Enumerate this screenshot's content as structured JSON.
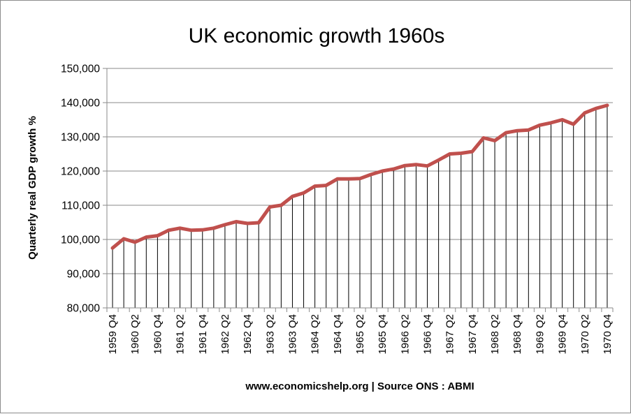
{
  "chart_data": {
    "type": "line",
    "title": "UK economic growth 1960s",
    "ylabel": "Quarterly real GDP growth %",
    "xlabel": "www.economicshelp.org | Source ONS : ABMI",
    "ylim": [
      80000,
      150000
    ],
    "yticks": [
      "80,000",
      "90,000",
      "100,000",
      "110,000",
      "120,000",
      "130,000",
      "140,000",
      "150,000"
    ],
    "ytick_values": [
      80000,
      90000,
      100000,
      110000,
      120000,
      130000,
      140000,
      150000
    ],
    "grid": true,
    "drop_lines": true,
    "x": [
      "1959 Q4",
      "1960 Q1",
      "1960 Q2",
      "1960 Q3",
      "1960 Q4",
      "1961 Q1",
      "1961 Q2",
      "1961 Q3",
      "1961 Q4",
      "1962 Q1",
      "1962 Q2",
      "1962 Q3",
      "1962 Q4",
      "1963 Q1",
      "1963 Q2",
      "1963 Q3",
      "1963 Q4",
      "1964 Q1",
      "1964 Q2",
      "1964 Q3",
      "1964 Q4",
      "1965 Q1",
      "1965 Q2",
      "1965 Q3",
      "1965 Q4",
      "1966 Q1",
      "1966 Q2",
      "1966 Q3",
      "1966 Q4",
      "1967 Q1",
      "1967 Q2",
      "1967 Q3",
      "1967 Q4",
      "1968 Q1",
      "1968 Q2",
      "1968 Q3",
      "1968 Q4",
      "1969 Q1",
      "1969 Q2",
      "1969 Q3",
      "1969 Q4",
      "1970 Q1",
      "1970 Q2",
      "1970 Q3",
      "1970 Q4"
    ],
    "x_labels_shown": [
      "1959 Q4",
      "1960 Q2",
      "1960 Q4",
      "1961 Q2",
      "1961 Q4",
      "1962 Q2",
      "1962 Q4",
      "1963 Q2",
      "1963 Q4",
      "1964 Q2",
      "1964 Q4",
      "1965 Q2",
      "1965 Q4",
      "1966 Q2",
      "1966 Q4",
      "1967 Q2",
      "1967 Q4",
      "1968 Q2",
      "1968 Q4",
      "1969 Q2",
      "1969 Q4",
      "1970 Q2",
      "1970 Q4"
    ],
    "series": [
      {
        "values": [
          97500,
          100200,
          99200,
          100700,
          101100,
          102700,
          103300,
          102700,
          102800,
          103300,
          104300,
          105200,
          104700,
          104900,
          109500,
          110000,
          112600,
          113600,
          115600,
          115800,
          117700,
          117700,
          117800,
          119000,
          120000,
          120600,
          121600,
          121900,
          121500,
          123200,
          125000,
          125200,
          125700,
          129700,
          128900,
          131200,
          131800,
          132000,
          133400,
          134100,
          135000,
          133700,
          137000,
          138300,
          139200
        ],
        "color": "#c0504d"
      }
    ]
  }
}
